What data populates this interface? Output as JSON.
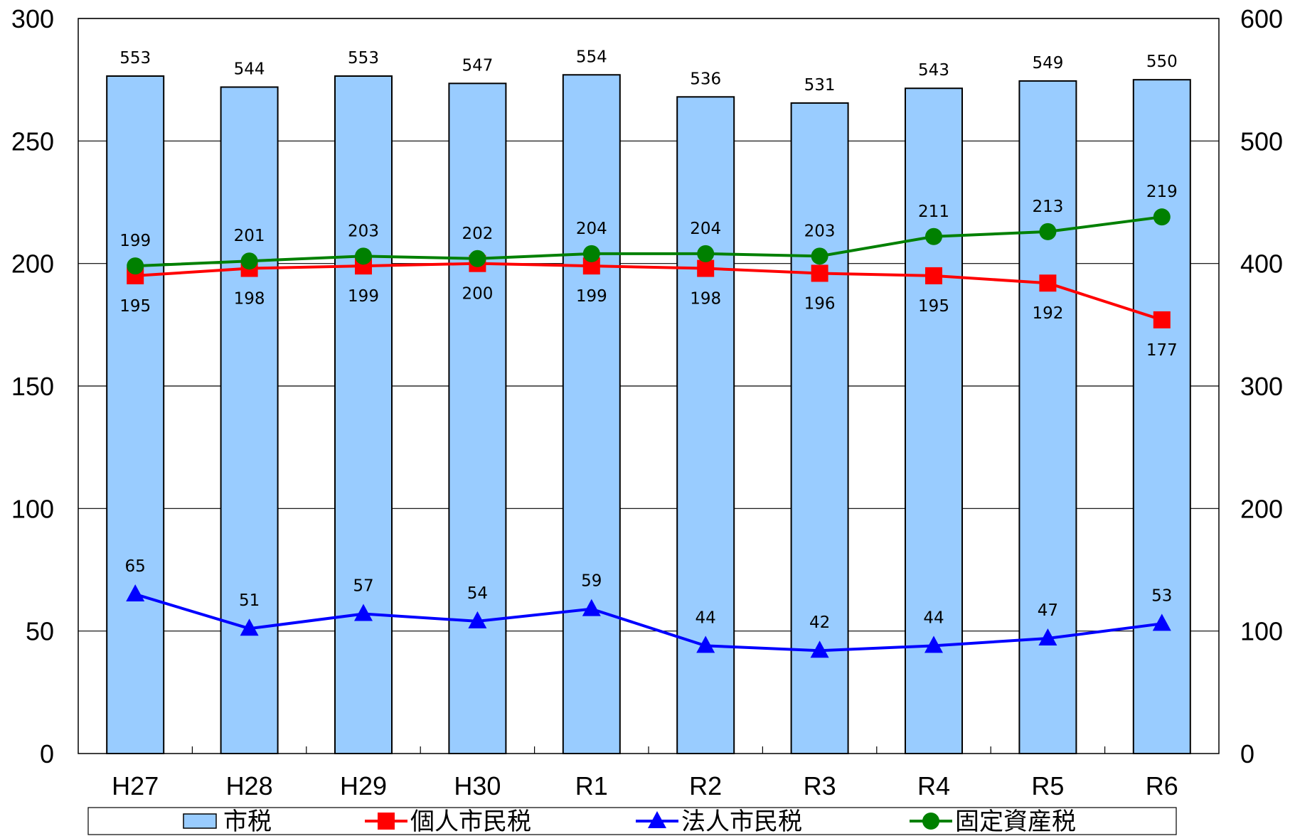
{
  "chart_data": {
    "type": "bar",
    "categories": [
      "H27",
      "H28",
      "H29",
      "H30",
      "R1",
      "R2",
      "R3",
      "R4",
      "R5",
      "R6"
    ],
    "y_left": {
      "ticks": [
        0,
        50,
        100,
        150,
        200,
        250,
        300
      ],
      "range": [
        0,
        300
      ]
    },
    "y_right": {
      "ticks": [
        0,
        100,
        200,
        300,
        400,
        500,
        600
      ],
      "range": [
        0,
        600
      ]
    },
    "grid": true,
    "legend_position": "bottom",
    "series": [
      {
        "name": "市税",
        "type": "bar",
        "axis": "right",
        "color": "#99ccff",
        "values": [
          553,
          544,
          553,
          547,
          554,
          536,
          531,
          543,
          549,
          550
        ]
      },
      {
        "name": "個人市民税",
        "type": "line",
        "axis": "left",
        "marker": "square",
        "color": "#ff0000",
        "values": [
          195,
          198,
          199,
          200,
          199,
          198,
          196,
          195,
          192,
          177
        ]
      },
      {
        "name": "法人市民税",
        "type": "line",
        "axis": "left",
        "marker": "triangle",
        "color": "#0000ff",
        "values": [
          65,
          51,
          57,
          54,
          59,
          44,
          42,
          44,
          47,
          53
        ]
      },
      {
        "name": "固定資産税",
        "type": "line",
        "axis": "left",
        "marker": "circle",
        "color": "#008000",
        "values": [
          199,
          201,
          203,
          202,
          204,
          204,
          203,
          211,
          213,
          219
        ]
      }
    ]
  }
}
